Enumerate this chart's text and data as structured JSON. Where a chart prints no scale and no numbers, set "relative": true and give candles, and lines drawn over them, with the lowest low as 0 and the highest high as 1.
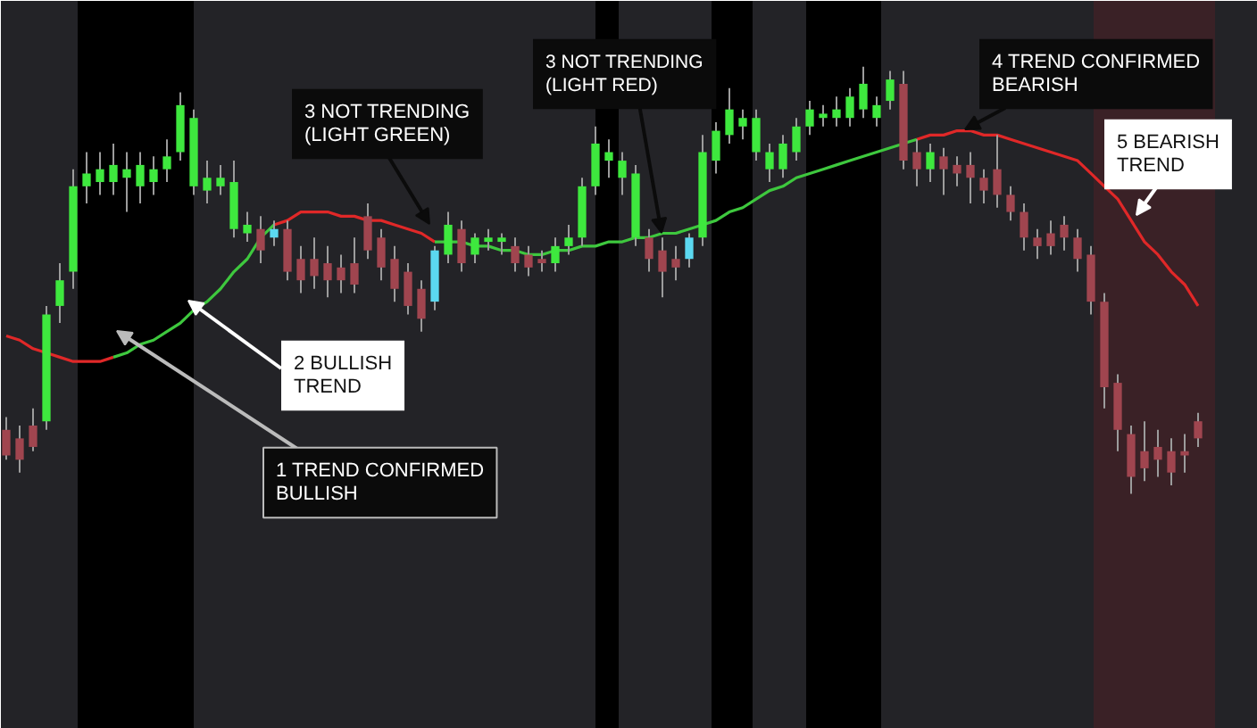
{
  "chart_data": {
    "type": "candlestick",
    "relative": true,
    "categories": [
      null,
      null,
      null,
      null,
      null,
      null,
      null,
      null,
      null,
      null,
      null,
      null,
      null,
      null,
      null,
      null,
      null,
      null,
      null,
      null,
      null,
      null,
      null,
      null,
      null,
      null,
      null,
      null,
      null,
      null,
      null,
      null,
      null,
      null,
      null,
      null,
      null,
      null,
      null,
      null,
      null,
      null,
      null,
      null,
      null,
      null,
      null,
      null,
      null,
      null,
      null,
      null,
      null,
      null,
      null,
      null,
      null,
      null,
      null,
      null,
      null,
      null,
      null,
      null,
      null,
      null,
      null,
      null,
      null,
      null,
      null,
      null,
      null,
      null,
      null,
      null,
      null,
      null,
      null,
      null,
      null,
      null,
      null,
      null,
      null,
      null,
      null,
      null,
      null,
      null
    ],
    "ohlc": [
      [
        0.15,
        0.18,
        0.08,
        0.09
      ],
      [
        0.13,
        0.16,
        0.05,
        0.08
      ],
      [
        0.16,
        0.2,
        0.1,
        0.11
      ],
      [
        0.17,
        0.44,
        0.15,
        0.42
      ],
      [
        0.44,
        0.54,
        0.4,
        0.5
      ],
      [
        0.52,
        0.76,
        0.48,
        0.72
      ],
      [
        0.72,
        0.8,
        0.68,
        0.75
      ],
      [
        0.73,
        0.8,
        0.7,
        0.76
      ],
      [
        0.73,
        0.82,
        0.7,
        0.77
      ],
      [
        0.74,
        0.8,
        0.66,
        0.76
      ],
      [
        0.72,
        0.8,
        0.68,
        0.77
      ],
      [
        0.73,
        0.79,
        0.7,
        0.76
      ],
      [
        0.76,
        0.83,
        0.73,
        0.79
      ],
      [
        0.8,
        0.94,
        0.78,
        0.91
      ],
      [
        0.72,
        0.9,
        0.7,
        0.88
      ],
      [
        0.71,
        0.78,
        0.68,
        0.74
      ],
      [
        0.72,
        0.77,
        0.7,
        0.74
      ],
      [
        0.62,
        0.78,
        0.6,
        0.73
      ],
      [
        0.61,
        0.66,
        0.59,
        0.63
      ],
      [
        0.62,
        0.65,
        0.54,
        0.57
      ],
      [
        0.6,
        0.64,
        0.58,
        0.62
      ],
      [
        0.62,
        0.64,
        0.5,
        0.52
      ],
      [
        0.55,
        0.58,
        0.47,
        0.5
      ],
      [
        0.55,
        0.6,
        0.48,
        0.51
      ],
      [
        0.54,
        0.58,
        0.46,
        0.5
      ],
      [
        0.53,
        0.56,
        0.47,
        0.5
      ],
      [
        0.54,
        0.6,
        0.47,
        0.49
      ],
      [
        0.65,
        0.68,
        0.55,
        0.57
      ],
      [
        0.6,
        0.62,
        0.5,
        0.53
      ],
      [
        0.55,
        0.58,
        0.45,
        0.48
      ],
      [
        0.52,
        0.54,
        0.42,
        0.44
      ],
      [
        0.48,
        0.5,
        0.38,
        0.41
      ],
      [
        0.45,
        0.58,
        0.43,
        0.57
      ],
      [
        0.56,
        0.66,
        0.54,
        0.63
      ],
      [
        0.62,
        0.64,
        0.52,
        0.54
      ],
      [
        0.56,
        0.61,
        0.54,
        0.6
      ],
      [
        0.59,
        0.62,
        0.57,
        0.6
      ],
      [
        0.59,
        0.61,
        0.56,
        0.6
      ],
      [
        0.58,
        0.6,
        0.52,
        0.54
      ],
      [
        0.56,
        0.58,
        0.51,
        0.53
      ],
      [
        0.55,
        0.57,
        0.52,
        0.54
      ],
      [
        0.54,
        0.6,
        0.52,
        0.58
      ],
      [
        0.58,
        0.63,
        0.56,
        0.6
      ],
      [
        0.6,
        0.74,
        0.58,
        0.72
      ],
      [
        0.72,
        0.86,
        0.7,
        0.82
      ],
      [
        0.78,
        0.83,
        0.74,
        0.8
      ],
      [
        0.74,
        0.8,
        0.7,
        0.78
      ],
      [
        0.6,
        0.77,
        0.58,
        0.75
      ],
      [
        0.6,
        0.62,
        0.52,
        0.55
      ],
      [
        0.57,
        0.6,
        0.46,
        0.52
      ],
      [
        0.55,
        0.58,
        0.5,
        0.53
      ],
      [
        0.55,
        0.61,
        0.53,
        0.6
      ],
      [
        0.6,
        0.84,
        0.58,
        0.8
      ],
      [
        0.78,
        0.87,
        0.75,
        0.85
      ],
      [
        0.84,
        0.95,
        0.82,
        0.9
      ],
      [
        0.86,
        0.9,
        0.83,
        0.88
      ],
      [
        0.8,
        0.9,
        0.78,
        0.88
      ],
      [
        0.76,
        0.82,
        0.73,
        0.8
      ],
      [
        0.76,
        0.84,
        0.74,
        0.82
      ],
      [
        0.8,
        0.88,
        0.78,
        0.86
      ],
      [
        0.86,
        0.92,
        0.84,
        0.9
      ],
      [
        0.88,
        0.91,
        0.86,
        0.89
      ],
      [
        0.88,
        0.93,
        0.86,
        0.9
      ],
      [
        0.88,
        0.95,
        0.86,
        0.93
      ],
      [
        0.9,
        1.0,
        0.88,
        0.96
      ],
      [
        0.88,
        0.93,
        0.86,
        0.91
      ],
      [
        0.92,
        0.99,
        0.9,
        0.97
      ],
      [
        0.96,
        0.99,
        0.76,
        0.78
      ],
      [
        0.8,
        0.83,
        0.72,
        0.76
      ],
      [
        0.76,
        0.82,
        0.73,
        0.8
      ],
      [
        0.79,
        0.81,
        0.7,
        0.76
      ],
      [
        0.77,
        0.79,
        0.72,
        0.75
      ],
      [
        0.77,
        0.8,
        0.68,
        0.74
      ],
      [
        0.74,
        0.76,
        0.68,
        0.71
      ],
      [
        0.76,
        0.84,
        0.67,
        0.7
      ],
      [
        0.7,
        0.72,
        0.64,
        0.66
      ],
      [
        0.66,
        0.68,
        0.57,
        0.6
      ],
      [
        0.6,
        0.62,
        0.55,
        0.58
      ],
      [
        0.61,
        0.64,
        0.56,
        0.58
      ],
      [
        0.63,
        0.65,
        0.57,
        0.6
      ],
      [
        0.6,
        0.62,
        0.52,
        0.55
      ],
      [
        0.56,
        0.58,
        0.42,
        0.45
      ],
      [
        0.45,
        0.47,
        0.2,
        0.25
      ],
      [
        0.26,
        0.28,
        0.1,
        0.15
      ],
      [
        0.14,
        0.16,
        0.0,
        0.04
      ],
      [
        0.1,
        0.17,
        0.03,
        0.06
      ],
      [
        0.11,
        0.15,
        0.04,
        0.08
      ],
      [
        0.1,
        0.13,
        0.02,
        0.05
      ],
      [
        0.1,
        0.14,
        0.05,
        0.09
      ],
      [
        0.17,
        0.19,
        0.11,
        0.13
      ]
    ],
    "colors": [
      "#a0454f",
      "#a0454f",
      "#a0454f",
      "#3ee83e",
      "#3ee83e",
      "#3ee83e",
      "#3ee83e",
      "#3ee83e",
      "#3ee83e",
      "#3ee83e",
      "#3ee83e",
      "#3ee83e",
      "#3ee83e",
      "#3ee83e",
      "#3ee83e",
      "#3ee83e",
      "#3ee83e",
      "#3ee83e",
      "#3ee83e",
      "#a0454f",
      "#5bd8f0",
      "#a0454f",
      "#a0454f",
      "#a0454f",
      "#a0454f",
      "#a0454f",
      "#a0454f",
      "#a0454f",
      "#a0454f",
      "#a0454f",
      "#a0454f",
      "#a0454f",
      "#5bd8f0",
      "#3ee83e",
      "#a0454f",
      "#3ee83e",
      "#3ee83e",
      "#3ee83e",
      "#a0454f",
      "#a0454f",
      "#a0454f",
      "#3ee83e",
      "#3ee83e",
      "#3ee83e",
      "#3ee83e",
      "#3ee83e",
      "#3ee83e",
      "#3ee83e",
      "#a0454f",
      "#a0454f",
      "#a0454f",
      "#5bd8f0",
      "#3ee83e",
      "#3ee83e",
      "#3ee83e",
      "#3ee83e",
      "#3ee83e",
      "#3ee83e",
      "#3ee83e",
      "#3ee83e",
      "#3ee83e",
      "#3ee83e",
      "#3ee83e",
      "#3ee83e",
      "#3ee83e",
      "#3ee83e",
      "#3ee83e",
      "#a0454f",
      "#a0454f",
      "#3ee83e",
      "#a0454f",
      "#a0454f",
      "#a0454f",
      "#a0454f",
      "#a0454f",
      "#a0454f",
      "#a0454f",
      "#a0454f",
      "#a0454f",
      "#a0454f",
      "#a0454f",
      "#a0454f",
      "#a0454f",
      "#a0454f",
      "#a0454f",
      "#a0454f",
      "#a0454f",
      "#a0454f",
      "#a0454f",
      "#a0454f"
    ],
    "series": [
      {
        "type": "line",
        "color": "#e02828",
        "values": [
          0.37,
          0.36,
          0.34,
          0.33,
          0.32,
          0.31,
          0.31,
          0.31,
          0.32,
          null,
          null,
          null,
          null,
          null,
          null,
          null,
          null,
          null,
          null,
          null,
          0.63,
          0.64,
          0.66,
          0.66,
          0.66,
          0.65,
          0.65,
          0.64,
          0.64,
          0.63,
          0.62,
          0.61,
          0.59,
          null,
          null,
          null,
          null,
          null,
          null,
          null,
          null,
          null,
          null,
          null,
          null,
          null,
          null,
          null,
          null,
          null,
          null,
          null,
          null,
          null,
          null,
          null,
          null,
          null,
          null,
          null,
          null,
          null,
          null,
          null,
          null,
          null,
          null,
          null,
          0.83,
          0.84,
          0.84,
          0.85,
          0.85,
          0.84,
          0.84,
          0.83,
          0.82,
          0.81,
          0.8,
          0.79,
          0.78,
          0.75,
          0.72,
          0.69,
          0.64,
          0.59,
          0.56,
          0.52,
          0.49,
          0.44
        ]
      },
      {
        "type": "line",
        "color": "#3ec83e",
        "values": [
          null,
          null,
          null,
          null,
          null,
          null,
          null,
          null,
          0.32,
          0.33,
          0.35,
          0.36,
          0.38,
          0.4,
          0.43,
          0.45,
          0.48,
          0.52,
          0.55,
          0.6,
          0.63,
          null,
          null,
          null,
          null,
          null,
          null,
          null,
          null,
          null,
          null,
          null,
          0.59,
          0.59,
          0.59,
          0.58,
          0.58,
          0.57,
          0.57,
          0.56,
          0.56,
          0.57,
          0.57,
          0.58,
          0.58,
          0.59,
          0.59,
          0.6,
          0.6,
          0.61,
          0.61,
          0.62,
          0.63,
          0.64,
          0.66,
          0.67,
          0.69,
          0.71,
          0.72,
          0.74,
          0.75,
          0.76,
          0.77,
          0.78,
          0.79,
          0.8,
          0.81,
          0.82,
          0.83,
          null,
          null,
          null,
          null,
          null,
          null,
          null,
          null,
          null,
          null,
          null,
          null,
          null,
          null,
          null,
          null,
          null,
          null,
          null,
          null,
          null
        ]
      }
    ],
    "annotations": [
      "1 TREND CONFIRMED\nBULLISH",
      "2 BULLISH\nTREND",
      "3 NOT TRENDING\n(LIGHT GREEN)",
      "3 NOT TRENDING\n(LIGHT RED)",
      "4 TREND CONFIRMED\nBEARISH",
      "5 BEARISH\nTREND"
    ]
  }
}
